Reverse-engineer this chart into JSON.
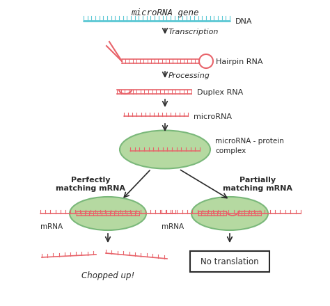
{
  "bg_color": "#ffffff",
  "dna_color": "#5bc8d4",
  "rna_color": "#e8636a",
  "green_fill": "#b5d9a1",
  "green_edge": "#7ab87a",
  "text_color": "#2a2a2a",
  "title": "microRNA gene",
  "dna_label": "DNA",
  "transcription_label": "Transcription",
  "hairpin_label": "Hairpin RNA",
  "processing_label": "Processing",
  "duplex_label": "Duplex RNA",
  "mirna_label": "microRNA",
  "complex_label": "microRNA - protein\ncomplex",
  "perfect_label": "Perfectly\nmatching mRNA",
  "partial_label": "Partially\nmatching mRNA",
  "mrna_label_left": "mRNA",
  "mrna_label_right": "mRNA",
  "chopped_label": "Chopped up!",
  "no_trans_label": "No translation",
  "figsize": [
    4.74,
    4.4
  ],
  "dpi": 100
}
